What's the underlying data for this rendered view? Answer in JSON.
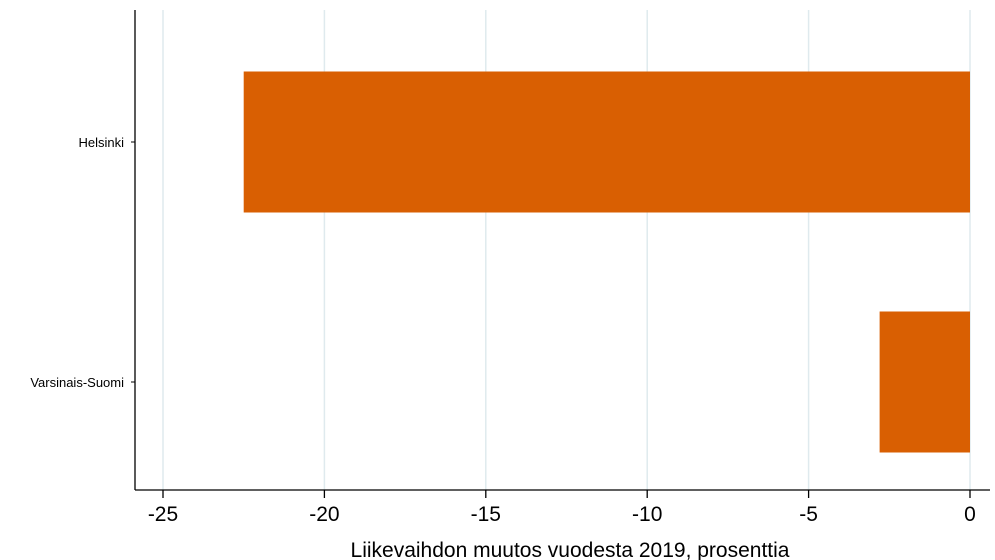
{
  "chart_data": {
    "type": "bar",
    "orientation": "horizontal",
    "categories": [
      "Helsinki",
      "Varsinais-Suomi"
    ],
    "values": [
      -22.5,
      -2.8
    ],
    "xlabel": "Liikevaihdon muutos vuodesta 2019, prosenttia",
    "xlim": [
      -25.9,
      0.9
    ],
    "xticks": [
      -25,
      -20,
      -15,
      -10,
      -5,
      0
    ],
    "xtick_labels": [
      "-25",
      "-20",
      "-15",
      "-10",
      "-5",
      "0"
    ],
    "grid": true,
    "colors": {
      "bar": "#d95f02",
      "grid": "#dfeaee",
      "axis": "#000000"
    }
  }
}
